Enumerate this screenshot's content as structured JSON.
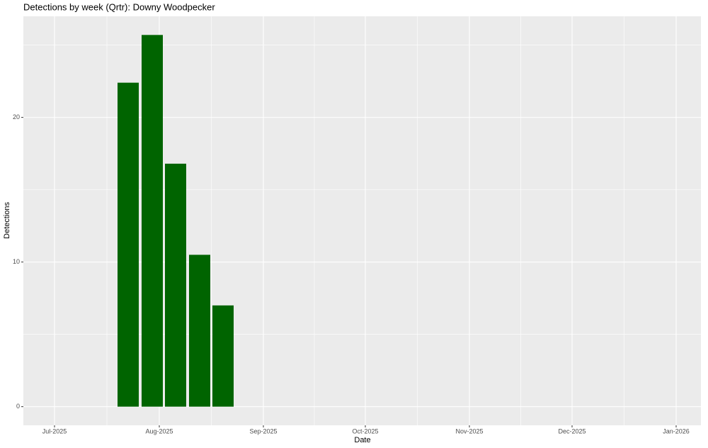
{
  "chart_data": {
    "type": "bar",
    "title": "Detections by week (Qrtr): Downy Woodpecker",
    "x_label": "Date",
    "y_label": "Detections",
    "categories": [
      null,
      null,
      null,
      null,
      null
    ],
    "values": [
      22.4,
      25.7,
      16.8,
      10.5,
      7.0
    ],
    "color": "#006400",
    "xticks": [
      "Jul-2025",
      "Aug-2025",
      "Sep-2025",
      "Oct-2025",
      "Nov-2025",
      "Dec-2025",
      "Jan-2026"
    ],
    "ylim": [
      -1.29,
      26.99
    ],
    "yticks": [
      0,
      10,
      20
    ],
    "grid": true
  }
}
